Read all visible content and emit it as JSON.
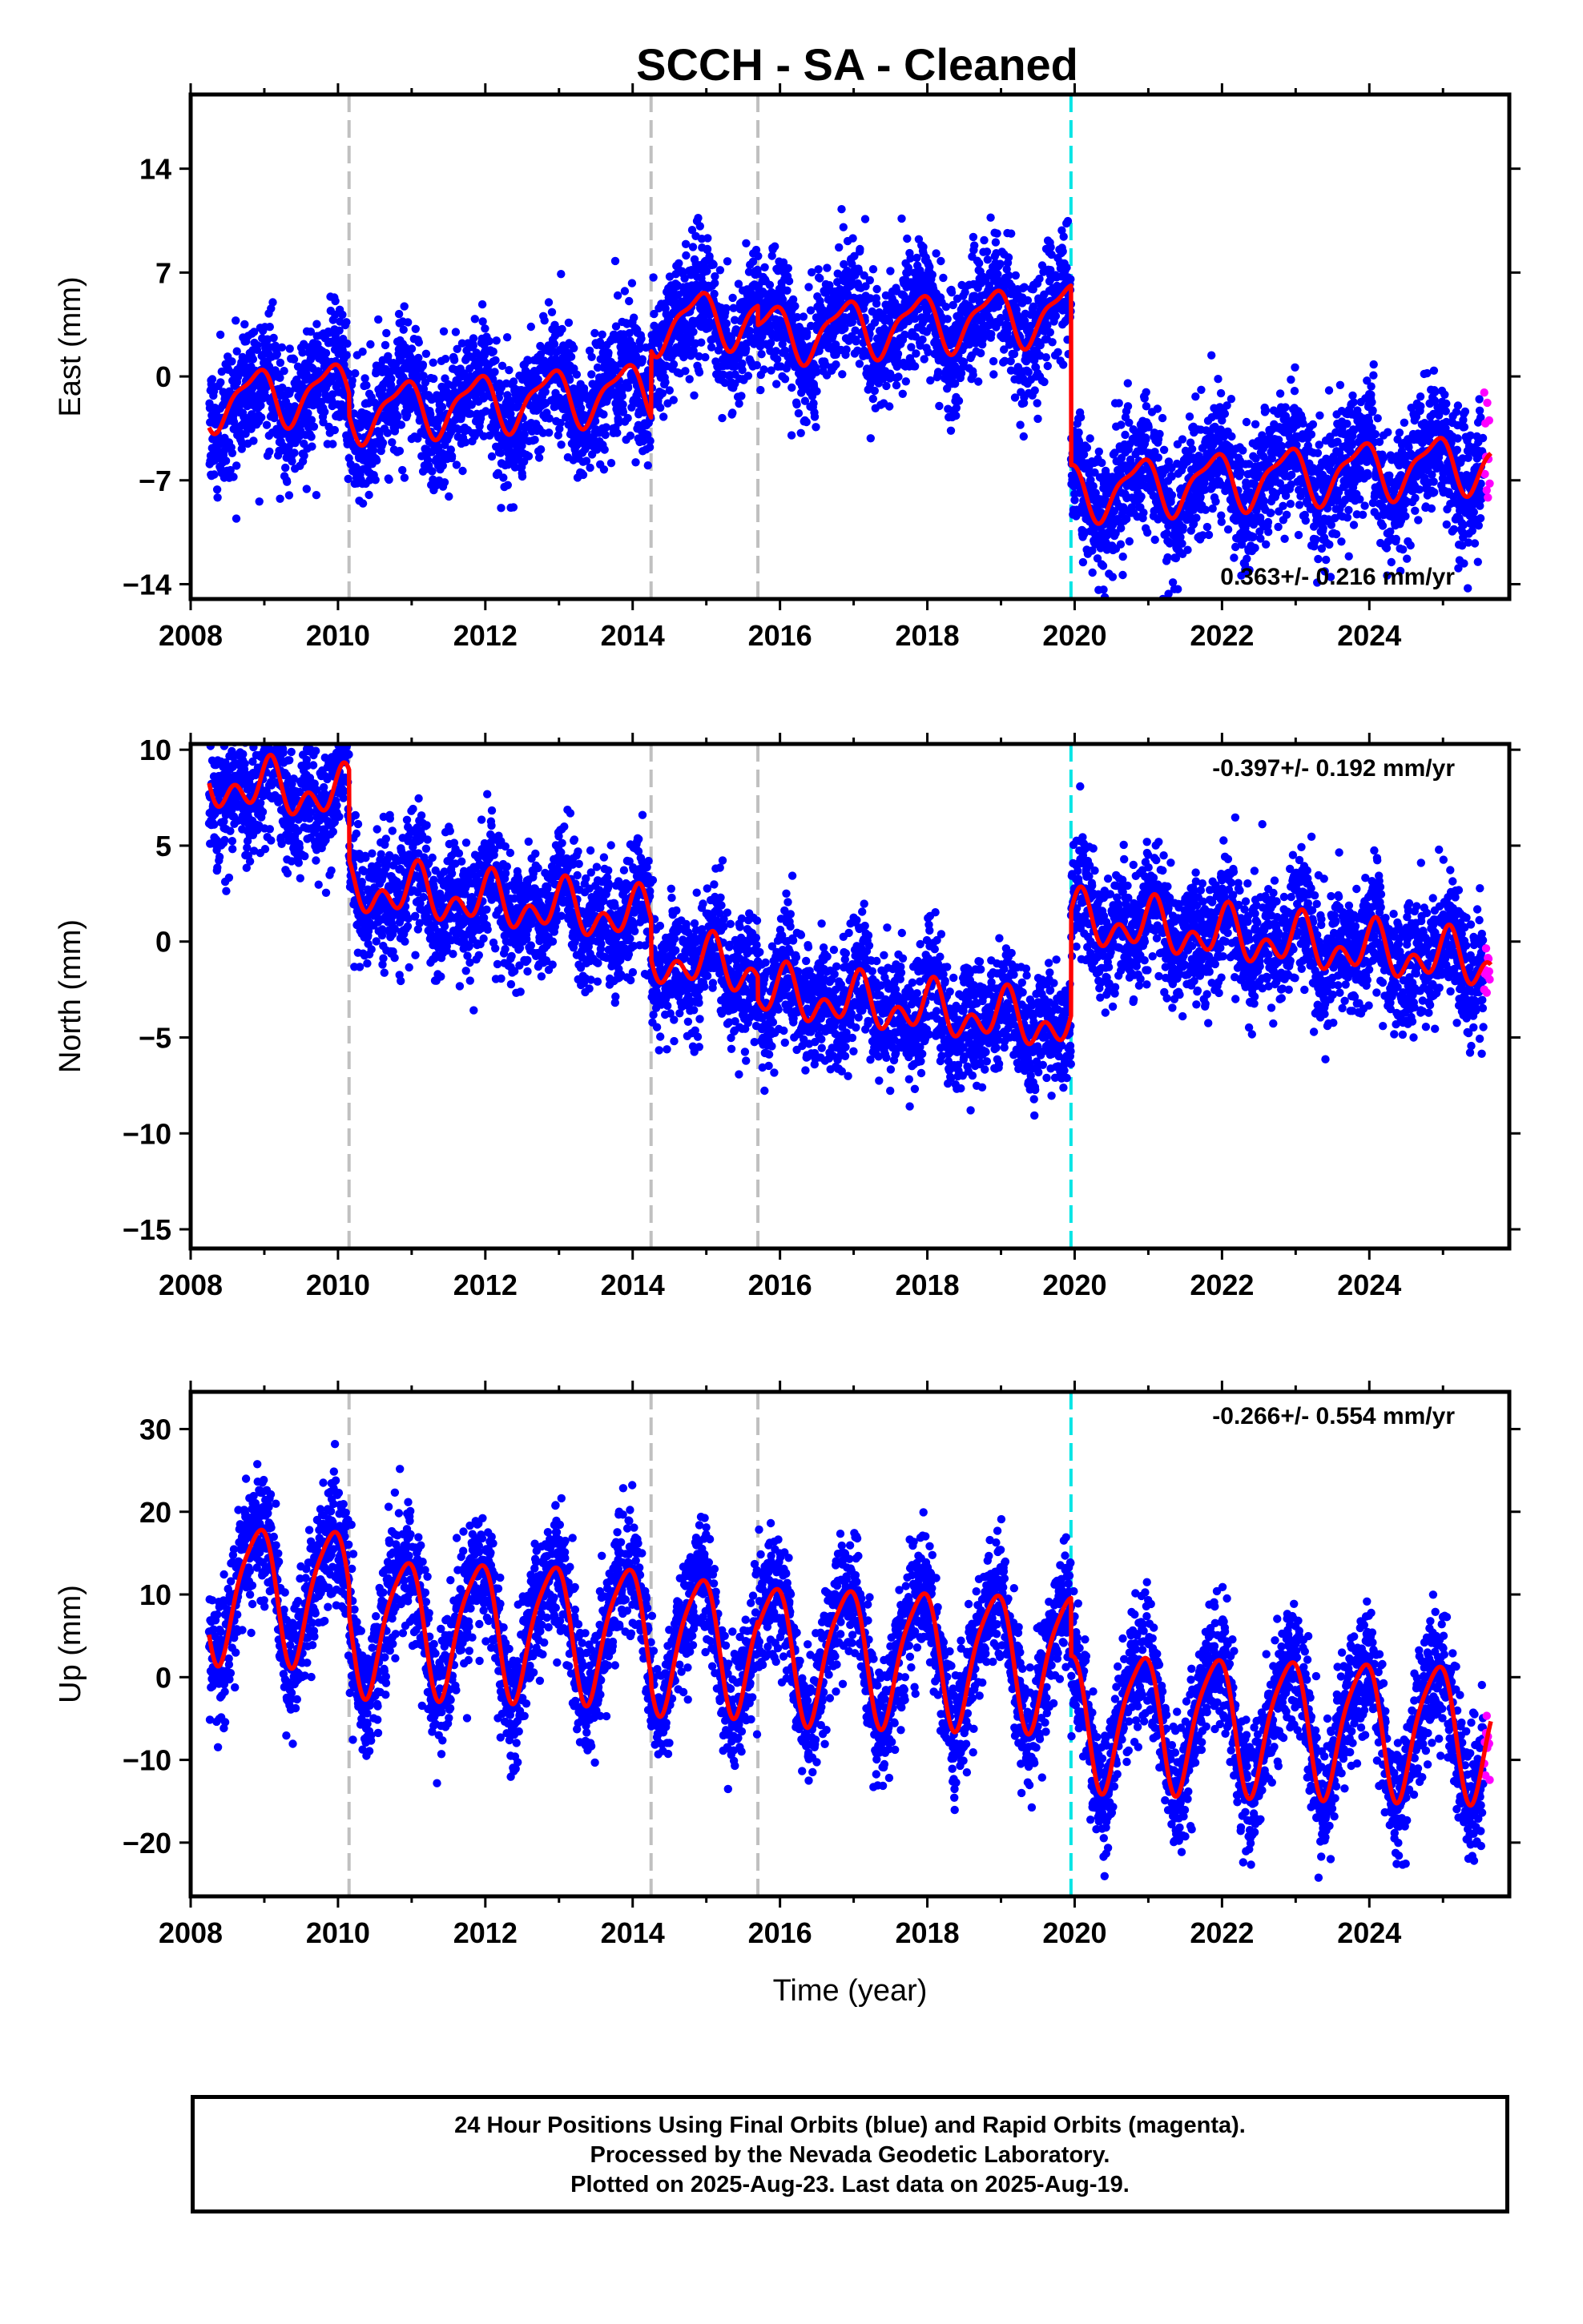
{
  "title": "SCCH  - SA - Cleaned",
  "footer": {
    "line1": "24 Hour Positions Using Final Orbits (blue) and Rapid Orbits (magenta).",
    "line2": "Processed by the Nevada Geodetic Laboratory.",
    "line3": "Plotted on 2025-Aug-23. Last data on 2025-Aug-19."
  },
  "colors": {
    "final_points": "#0000ff",
    "rapid_points": "#ff00ff",
    "model_line": "#ff0000",
    "equipment_change_lines": "#c0c0c0",
    "earthquake_line": "#00e5e5"
  },
  "chart_data": [
    {
      "type": "scatter",
      "ylabel": "East (mm)",
      "xlabel": "",
      "xlim": [
        2008.0,
        2025.9
      ],
      "ylim": [
        -15,
        19
      ],
      "xticks": [
        2008,
        2010,
        2012,
        2014,
        2016,
        2018,
        2020,
        2022,
        2024
      ],
      "yticks": [
        -14,
        -7,
        0,
        7,
        14
      ],
      "rate_label": "0.363+/- 0.216 mm/yr",
      "rate_label_position": "bottom-right",
      "dashed_lines_gray": [
        2010.15,
        2014.25,
        2015.7
      ],
      "dashed_line_cyan": 2019.95,
      "model": {
        "segments": [
          {
            "start": 2008.25,
            "end": 2010.15,
            "offset": 1.2,
            "rate": 0.363
          },
          {
            "start": 2010.15,
            "end": 2014.25,
            "offset": -0.3,
            "rate": 0.363
          },
          {
            "start": 2014.25,
            "end": 2015.7,
            "offset": 4.2,
            "rate": 0.363
          },
          {
            "start": 2015.7,
            "end": 2019.95,
            "offset": 2.9,
            "rate": 0.363
          },
          {
            "start": 2019.95,
            "end": 2025.65,
            "offset": -9.2,
            "rate": 0.363
          }
        ],
        "annual_amplitude": 1.8,
        "annual_phase": 2.4,
        "semiannual_amplitude": 0.6,
        "semiannual_phase": 1.0,
        "noise_sd": 2.1
      }
    },
    {
      "type": "scatter",
      "ylabel": "North (mm)",
      "xlabel": "",
      "xlim": [
        2008.0,
        2025.9
      ],
      "ylim": [
        -16,
        10.3
      ],
      "xticks": [
        2008,
        2010,
        2012,
        2014,
        2016,
        2018,
        2020,
        2022,
        2024
      ],
      "yticks": [
        -15,
        -10,
        -5,
        0,
        5,
        10
      ],
      "rate_label": "-0.397+/- 0.192 mm/yr",
      "rate_label_position": "top-right",
      "dashed_lines_gray": [
        2010.15,
        2014.25,
        2015.7
      ],
      "dashed_line_cyan": 2019.95,
      "model": {
        "segments": [
          {
            "start": 2008.25,
            "end": 2010.15,
            "offset": 5.2,
            "rate": -0.397
          },
          {
            "start": 2010.15,
            "end": 2014.25,
            "offset": 0.5,
            "rate": -0.397
          },
          {
            "start": 2014.25,
            "end": 2015.7,
            "offset": -1.6,
            "rate": -0.397
          },
          {
            "start": 2015.7,
            "end": 2019.95,
            "offset": -2.8,
            "rate": -0.397
          },
          {
            "start": 2019.95,
            "end": 2025.65,
            "offset": 2.7,
            "rate": -0.397
          }
        ],
        "annual_amplitude": 0.9,
        "annual_phase": 1.2,
        "semiannual_amplitude": 0.9,
        "semiannual_phase": 0.4,
        "noise_sd": 1.6
      }
    },
    {
      "type": "scatter",
      "ylabel": "Up (mm)",
      "xlabel": "Time (year)",
      "xlim": [
        2008.0,
        2025.9
      ],
      "ylim": [
        -26.5,
        34.5
      ],
      "xticks": [
        2008,
        2010,
        2012,
        2014,
        2016,
        2018,
        2020,
        2022,
        2024
      ],
      "yticks": [
        -20,
        -10,
        0,
        10,
        20,
        30
      ],
      "rate_label": "-0.266+/- 0.554 mm/yr",
      "rate_label_position": "top-right",
      "dashed_lines_gray": [
        2010.15,
        2014.25,
        2015.7
      ],
      "dashed_line_cyan": 2019.95,
      "model": {
        "segments": [
          {
            "start": 2008.25,
            "end": 2010.15,
            "offset": 8.5,
            "rate": -0.266
          },
          {
            "start": 2010.15,
            "end": 2014.25,
            "offset": 5.0,
            "rate": -0.266
          },
          {
            "start": 2014.25,
            "end": 2015.7,
            "offset": 4.0,
            "rate": -0.266
          },
          {
            "start": 2015.7,
            "end": 2019.95,
            "offset": 3.2,
            "rate": -0.266
          },
          {
            "start": 2019.95,
            "end": 2025.65,
            "offset": -3.8,
            "rate": -0.266
          }
        ],
        "annual_amplitude": 8.0,
        "annual_phase": 2.2,
        "semiannual_amplitude": 1.5,
        "semiannual_phase": 0.5,
        "noise_sd": 3.8
      }
    }
  ]
}
